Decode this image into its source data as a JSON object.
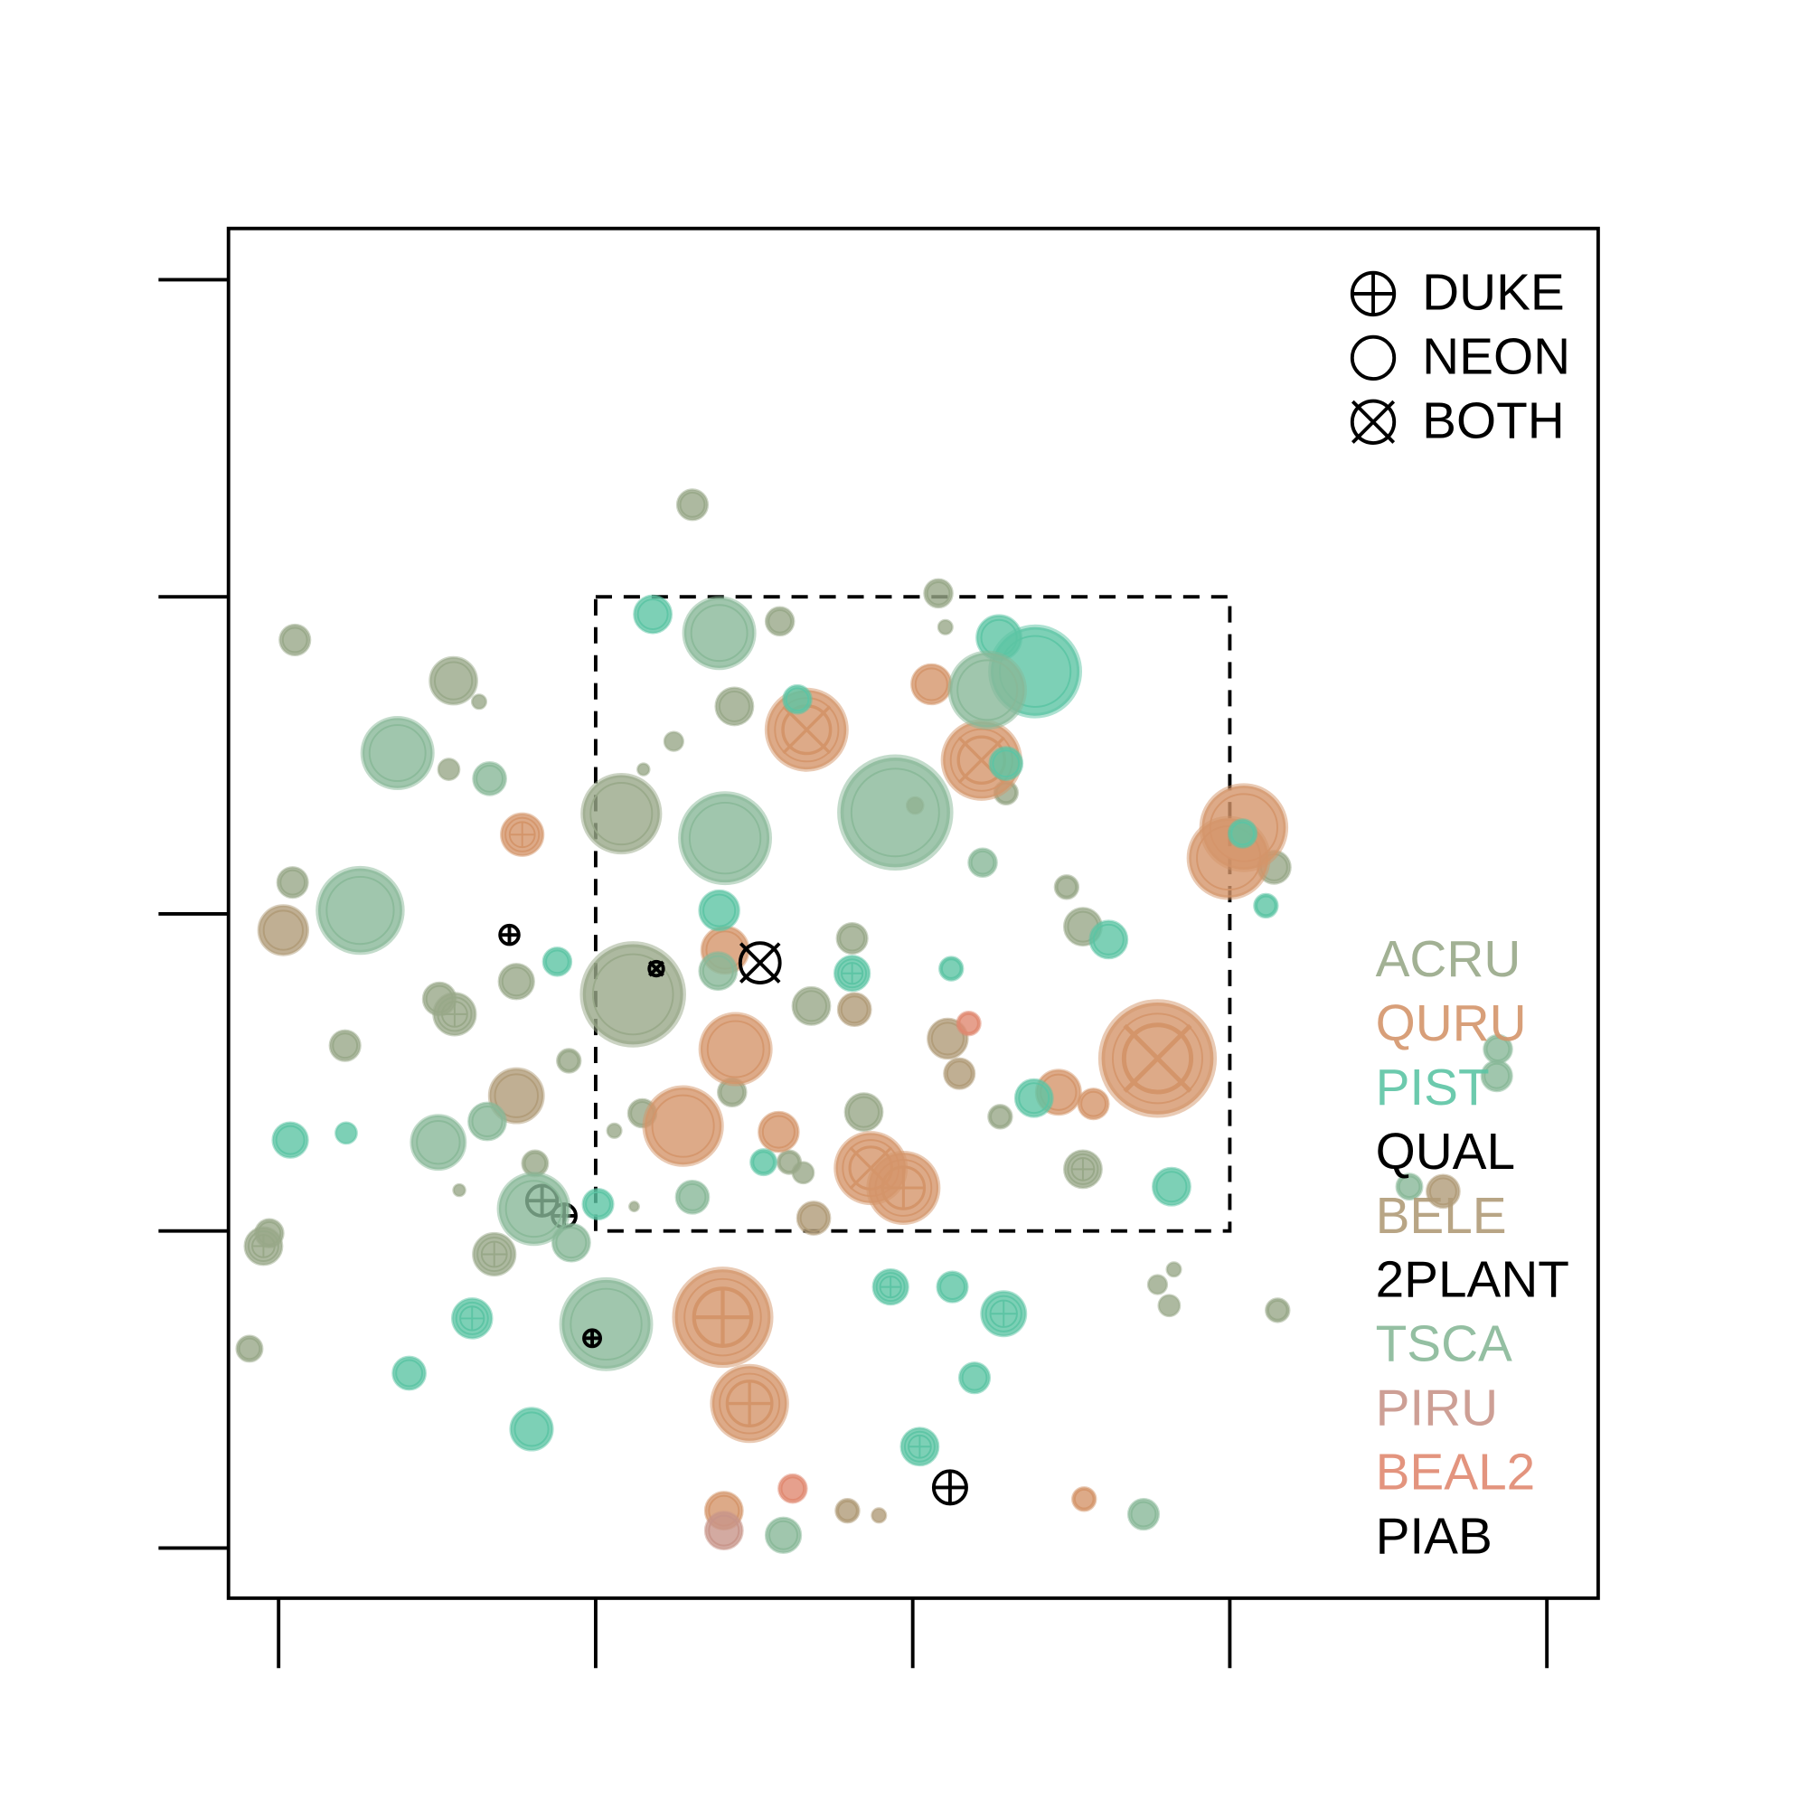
{
  "chart_data": {
    "type": "scatter",
    "xlim": [
      -43,
      1132
    ],
    "ylim": [
      -43,
      1132
    ],
    "xticks": [
      0,
      272,
      544,
      816,
      1088
    ],
    "yticks": [
      0,
      272,
      544,
      816,
      1088
    ],
    "region": {
      "x": [
        272,
        816
      ],
      "y": [
        272,
        816
      ]
    },
    "marker_legend": [
      {
        "label": "DUKE",
        "marker": "duke"
      },
      {
        "label": "NEON",
        "marker": "circle"
      },
      {
        "label": "BOTH",
        "marker": "both"
      }
    ],
    "series": [
      {
        "name": "ACRU",
        "color": "#98a888",
        "filled": true,
        "x": [
          355,
          14,
          150,
          172,
          430,
          566,
          572,
          391,
          339,
          313,
          146,
          294,
          624,
          12,
          676,
          690,
          492,
          204,
          138,
          151,
          457,
          57,
          249,
          389,
          502,
          619,
          312,
          288,
          220,
          690,
          438,
          450,
          305,
          155,
          -8,
          -13,
          185,
          754,
          768,
          764,
          857,
          -25,
          854,
          304
        ],
        "values": [
          895,
          779,
          744,
          726,
          795,
          819,
          790,
          722,
          692,
          668,
          668,
          630,
          648,
          571,
          567,
          533,
          523,
          486,
          471,
          458,
          465,
          431,
          418,
          391,
          374,
          370,
          373,
          358,
          330,
          325,
          331,
          322,
          293,
          307,
          270,
          259,
          252,
          226,
          239,
          208,
          204,
          171,
          584,
          475
        ],
        "sizes": [
          13,
          13,
          20,
          6,
          12,
          12,
          6,
          16,
          8,
          5,
          9,
          33,
          10,
          13,
          10,
          16,
          13,
          15,
          14,
          18,
          16,
          13,
          10,
          12,
          16,
          10,
          12,
          6,
          11,
          16,
          10,
          9,
          4,
          5,
          12,
          16,
          18,
          8,
          6,
          9,
          10,
          11,
          14,
          43
        ],
        "markers": [
          "circle",
          "circle",
          "circle",
          "circle",
          "circle",
          "circle",
          "circle",
          "circle",
          "circle",
          "circle",
          "circle",
          "circle",
          "circle",
          "circle",
          "circle",
          "circle",
          "circle",
          "circle",
          "circle",
          "duke",
          "circle",
          "circle",
          "circle",
          "circle",
          "circle",
          "circle",
          "circle",
          "circle",
          "circle",
          "duke",
          "circle",
          "circle",
          "circle",
          "circle",
          "circle",
          "duke",
          "duke",
          "circle",
          "circle",
          "circle",
          "circle",
          "circle",
          "circle",
          "circle"
        ]
      },
      {
        "name": "QURU",
        "color": "#d4956a",
        "filled": true,
        "x": [
          453,
          603,
          209,
          828,
          815,
          383,
          392,
          347,
          429,
          508,
          536,
          381,
          404,
          754,
          669,
          699,
          382,
          691,
          560
        ],
        "values": [
          702,
          676,
          612,
          618,
          592,
          513,
          428,
          362,
          357,
          326,
          309,
          198,
          124,
          420,
          391,
          381,
          32,
          42,
          741
        ],
        "sizes": [
          34,
          33,
          18,
          36,
          34,
          20,
          30,
          33,
          17,
          30,
          30,
          41,
          32,
          48,
          19,
          13,
          16,
          10,
          17
        ],
        "markers": [
          "both",
          "both",
          "duke",
          "circle",
          "circle",
          "circle",
          "circle",
          "circle",
          "circle",
          "both",
          "duke",
          "duke",
          "duke",
          "both",
          "circle",
          "circle",
          "circle",
          "circle",
          "circle"
        ]
      },
      {
        "name": "PIST",
        "color": "#5cc4a4",
        "filled": true,
        "x": [
          321,
          649,
          618,
          445,
          624,
          378,
          492,
          577,
          712,
          239,
          10,
          58,
          274,
          416,
          766,
          525,
          578,
          622,
          166,
          112,
          217,
          597,
          550,
          847,
          827,
          648
        ],
        "values": [
          801,
          752,
          781,
          728,
          673,
          547,
          493,
          497,
          522,
          503,
          350,
          356,
          295,
          331,
          310,
          224,
          224,
          201,
          197,
          150,
          102,
          146,
          87,
          551,
          613,
          386
        ],
        "sizes": [
          16,
          38,
          19,
          12,
          14,
          17,
          15,
          10,
          16,
          12,
          15,
          9,
          13,
          11,
          16,
          15,
          13,
          19,
          17,
          14,
          18,
          13,
          16,
          10,
          12,
          16
        ],
        "markers": [
          "circle",
          "circle",
          "circle",
          "circle",
          "circle",
          "circle",
          "duke",
          "circle",
          "circle",
          "circle",
          "circle",
          "circle",
          "circle",
          "circle",
          "circle",
          "duke",
          "circle",
          "duke",
          "duke",
          "circle",
          "circle",
          "circle",
          "duke",
          "circle",
          "circle",
          "circle"
        ]
      },
      {
        "name": "QUAL",
        "color": "#000000",
        "filled": false,
        "x": [
          198,
          226,
          245
        ],
        "values": [
          526,
          298,
          285
        ],
        "sizes": [
          8,
          13,
          10
        ],
        "markers": [
          "duke",
          "duke",
          "duke"
        ]
      },
      {
        "name": "BELE",
        "color": "#b09b78",
        "filled": true,
        "x": [
          204,
          574,
          459,
          999,
          488,
          515,
          4,
          546,
          584,
          494
        ],
        "values": [
          388,
          437,
          283,
          306,
          32,
          28,
          530,
          637,
          407,
          462
        ],
        "sizes": [
          23,
          17,
          14,
          14,
          10,
          6,
          21,
          7,
          13,
          14
        ],
        "markers": [
          "circle",
          "circle",
          "circle",
          "circle",
          "circle",
          "circle",
          "circle",
          "circle",
          "circle",
          "circle"
        ]
      },
      {
        "name": "2PLANT",
        "color": "#000000",
        "filled": false,
        "x": [
          413,
          324
        ],
        "values": [
          502,
          497
        ],
        "sizes": [
          17,
          6
        ],
        "markers": [
          "both",
          "both"
        ]
      },
      {
        "name": "TSCA",
        "color": "#88b898",
        "filled": true,
        "x": [
          378,
          383,
          529,
          70,
          604,
          181,
          219,
          281,
          179,
          251,
          742,
          433,
          1046,
          1045,
          970,
          102,
          137,
          355,
          377,
          608
        ],
        "values": [
          785,
          609,
          631,
          547,
          588,
          660,
          291,
          192,
          366,
          262,
          29,
          11,
          428,
          405,
          310,
          682,
          348,
          301,
          495,
          736
        ],
        "sizes": [
          30,
          38,
          47,
          36,
          12,
          14,
          30,
          38,
          16,
          16,
          13,
          15,
          12,
          13,
          11,
          30,
          23,
          14,
          16,
          32
        ],
        "markers": [
          "circle",
          "circle",
          "circle",
          "circle",
          "circle",
          "circle",
          "circle",
          "circle",
          "circle",
          "circle",
          "circle",
          "circle",
          "circle",
          "circle",
          "circle",
          "circle",
          "circle",
          "circle",
          "circle",
          "circle"
        ]
      },
      {
        "name": "PIRU",
        "color": "#c8958a",
        "filled": true,
        "x": [
          382
        ],
        "values": [
          15
        ],
        "sizes": [
          16
        ],
        "markers": [
          "circle"
        ]
      },
      {
        "name": "BEAL2",
        "color": "#e08870",
        "filled": true,
        "x": [
          441,
          592
        ],
        "values": [
          51,
          450
        ],
        "sizes": [
          12,
          10
        ],
        "markers": [
          "circle",
          "circle"
        ]
      },
      {
        "name": "PIAB",
        "color": "#000000",
        "filled": false,
        "x": [
          269,
          576
        ],
        "values": [
          180,
          52
        ],
        "sizes": [
          7,
          14
        ],
        "markers": [
          "duke",
          "duke"
        ]
      }
    ]
  }
}
